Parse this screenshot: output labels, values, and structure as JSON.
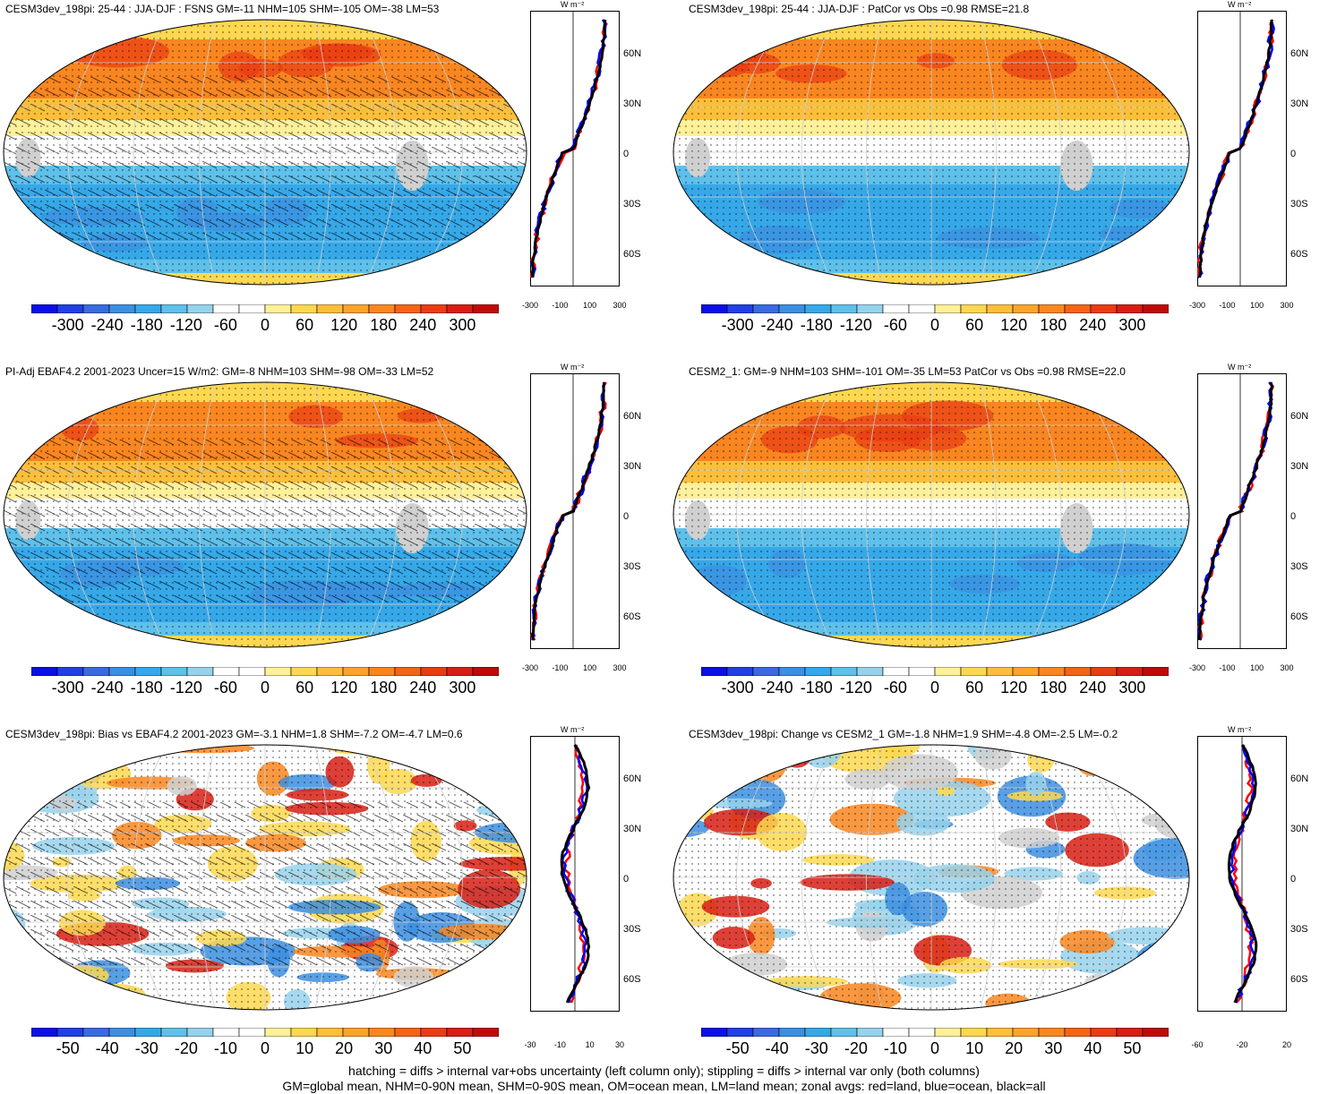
{
  "panels": [
    {
      "title": "CESM3dev_198pi: 25-44 : JJA-DJF : FSNS GM=-11 NHM=105 SHM=-105 OM=-38 LM=53",
      "colorbar": [
        "-300",
        "-240",
        "-180",
        "-120",
        "-60",
        "0",
        "60",
        "120",
        "180",
        "240",
        "300"
      ],
      "zonal_x": [
        "-300",
        "-100",
        "100",
        "300"
      ],
      "zonal_unit": "W m⁻²",
      "zonal_y": [
        "60N",
        "30N",
        "0",
        "30S",
        "60S"
      ],
      "hatched": true
    },
    {
      "title": "CESM3dev_198pi: 25-44 : JJA-DJF : PatCor vs Obs =0.98 RMSE=21.8",
      "colorbar": [
        "-300",
        "-240",
        "-180",
        "-120",
        "-60",
        "0",
        "60",
        "120",
        "180",
        "240",
        "300"
      ],
      "zonal_x": [
        "-300",
        "-100",
        "100",
        "300"
      ],
      "zonal_unit": "W m⁻²",
      "zonal_y": [
        "60N",
        "30N",
        "0",
        "30S",
        "60S"
      ],
      "hatched": false
    },
    {
      "title": "PI-Adj EBAF4.2 2001-2023 Uncer=15 W/m2: GM=-8 NHM=103 SHM=-98 OM=-33 LM=52",
      "colorbar": [
        "-300",
        "-240",
        "-180",
        "-120",
        "-60",
        "0",
        "60",
        "120",
        "180",
        "240",
        "300"
      ],
      "zonal_x": [
        "-300",
        "-100",
        "100",
        "300"
      ],
      "zonal_unit": "W m⁻²",
      "zonal_y": [
        "60N",
        "30N",
        "0",
        "30S",
        "60S"
      ],
      "hatched": true
    },
    {
      "title": "CESM2_1: GM=-9 NHM=103 SHM=-101 OM=-35 LM=53 PatCor vs Obs =0.98 RMSE=22.0",
      "colorbar": [
        "-300",
        "-240",
        "-180",
        "-120",
        "-60",
        "0",
        "60",
        "120",
        "180",
        "240",
        "300"
      ],
      "zonal_x": [
        "-300",
        "-100",
        "100",
        "300"
      ],
      "zonal_unit": "W m⁻²",
      "zonal_y": [
        "60N",
        "30N",
        "0",
        "30S",
        "60S"
      ],
      "hatched": false
    },
    {
      "title": "CESM3dev_198pi: Bias vs EBAF4.2 2001-2023 GM=-3.1 NHM=1.8 SHM=-7.2 OM=-4.7 LM=0.6",
      "colorbar": [
        "-50",
        "-40",
        "-30",
        "-20",
        "-10",
        "0",
        "10",
        "20",
        "30",
        "40",
        "50"
      ],
      "zonal_x": [
        "-30",
        "-10",
        "10",
        "30"
      ],
      "zonal_unit": "W m⁻²",
      "zonal_y": [
        "60N",
        "30N",
        "0",
        "30S",
        "60S"
      ],
      "hatched": true
    },
    {
      "title": "CESM3dev_198pi: Change vs CESM2_1 GM=-1.8 NHM=1.9 SHM=-4.8 OM=-2.5 LM=-0.2",
      "colorbar": [
        "-50",
        "-40",
        "-30",
        "-20",
        "-10",
        "0",
        "10",
        "20",
        "30",
        "40",
        "50"
      ],
      "zonal_x": [
        "-60",
        "-20",
        "20"
      ],
      "zonal_unit": "W m⁻²",
      "zonal_y": [
        "60N",
        "30N",
        "0",
        "30S",
        "60S"
      ],
      "hatched": false
    }
  ],
  "colorbar_colors": [
    "#0a10e6",
    "#2040e6",
    "#3a6ae0",
    "#3c8ee0",
    "#36a8e8",
    "#5fc0ea",
    "#96d2ec",
    "#ffffff",
    "#ffffff",
    "#fff09a",
    "#fed850",
    "#fdbf3a",
    "#fba42c",
    "#f98620",
    "#f46418",
    "#ea3c14",
    "#d81e14",
    "#c00a0a"
  ],
  "map_palettes": {
    "mean": {
      "north": "#f98620",
      "north_mid": "#fdbf3a",
      "tropic": "#fff09a",
      "equator": "#ffffff",
      "south_mid": "#5fc0ea",
      "south": "#36a8e8",
      "pole": "#fed850",
      "land": "#d0d0d0"
    },
    "diff": {
      "base": "#ffffff",
      "blue": "#3c8ee0",
      "lightblue": "#96d2ec",
      "yellow": "#fed850",
      "orange": "#f98620",
      "red": "#d81e14",
      "land": "#d0d0d0"
    }
  },
  "zonal_line_colors": {
    "land": "#ff0000",
    "ocean": "#0000ff",
    "all": "#000000"
  },
  "footer": {
    "line1": "hatching = diffs > internal var+obs uncertainty (left column only); stippling = diffs > internal var only (both columns)",
    "line2": "GM=global mean, NHM=0-90N mean, SHM=0-90S mean, OM=ocean mean, LM=land mean; zonal avgs: red=land, blue=ocean, black=all"
  }
}
